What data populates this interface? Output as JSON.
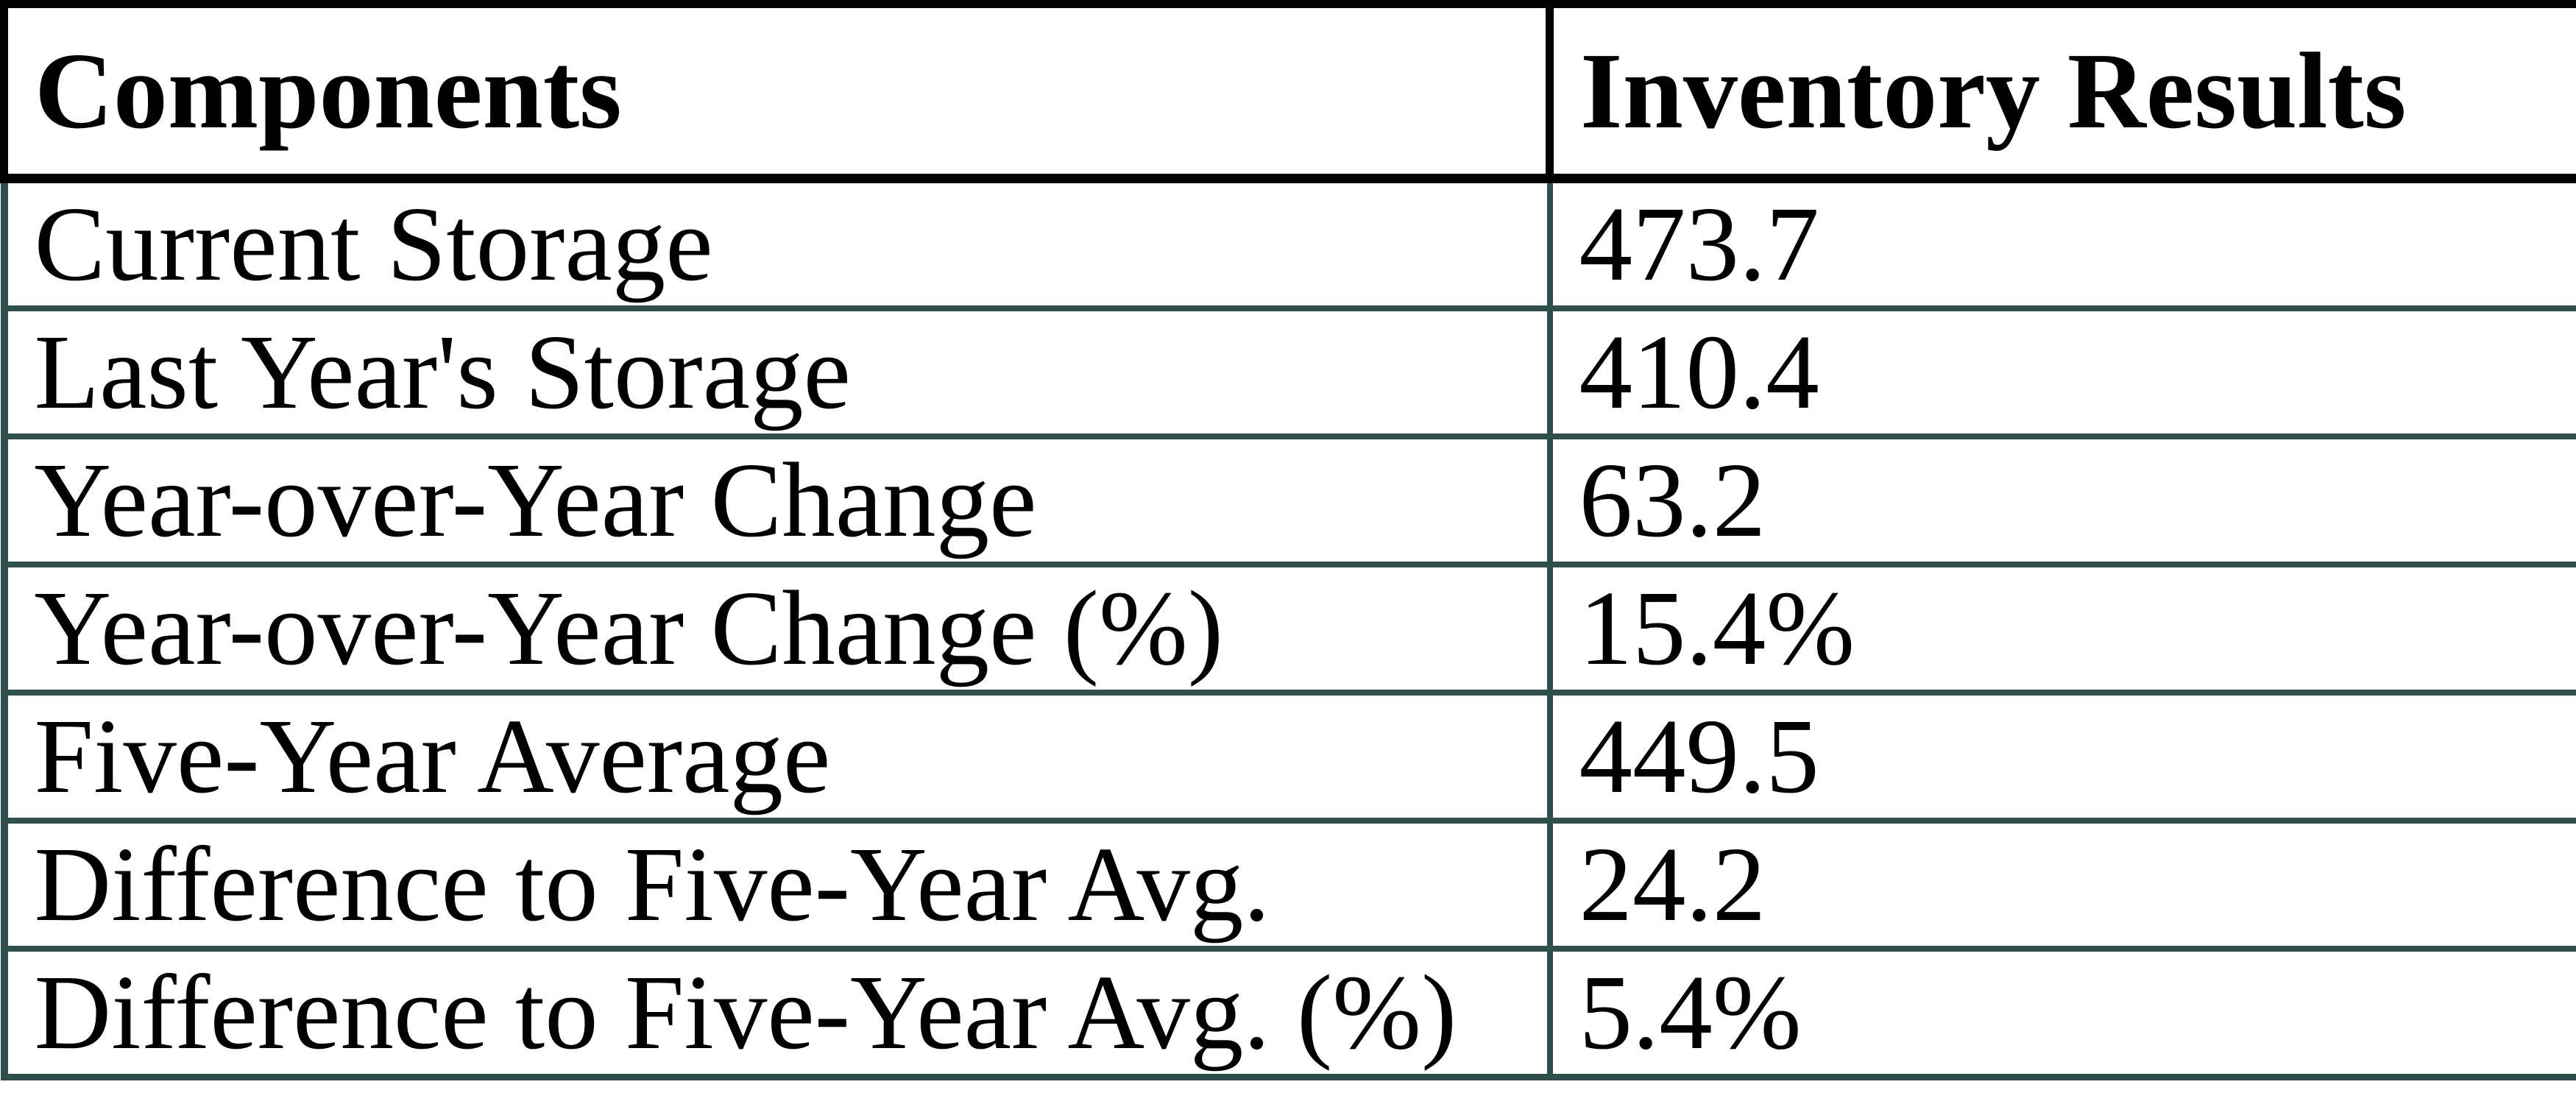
{
  "table": {
    "columns": [
      {
        "label": "Components"
      },
      {
        "label": "Inventory Results"
      }
    ],
    "rows": [
      {
        "label": "Current Storage",
        "value": "473.7"
      },
      {
        "label": "Last Year's Storage",
        "value": "410.4"
      },
      {
        "label": "Year-over-Year Change",
        "value": "63.2"
      },
      {
        "label": "Year-over-Year Change (%)",
        "value": "15.4%"
      },
      {
        "label": "Five-Year Average",
        "value": "449.5"
      },
      {
        "label": "Difference to Five-Year Avg.",
        "value": "24.2"
      },
      {
        "label": "Difference to Five-Year Avg. (%)",
        "value": "5.4%"
      }
    ]
  },
  "colors": {
    "background": "#FFFFFF",
    "text": "#000000",
    "header_border": "#000000",
    "body_border": "#2F4F4C"
  },
  "chart_data": {
    "type": "table",
    "title": "Inventory Results table",
    "columns": [
      "Components",
      "Inventory Results"
    ],
    "rows": [
      [
        "Current Storage",
        473.7
      ],
      [
        "Last Year's Storage",
        410.4
      ],
      [
        "Year-over-Year Change",
        63.2
      ],
      [
        "Year-over-Year Change (%)",
        "15.4%"
      ],
      [
        "Five-Year Average",
        449.5
      ],
      [
        "Difference to Five-Year Avg.",
        24.2
      ],
      [
        "Difference to Five-Year Avg. (%)",
        "5.4%"
      ]
    ]
  }
}
